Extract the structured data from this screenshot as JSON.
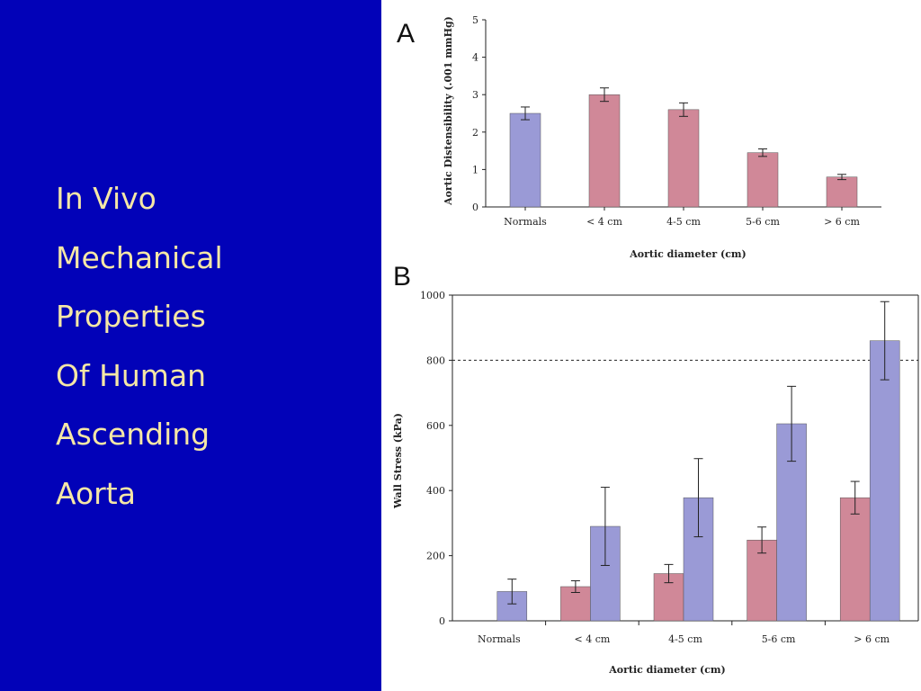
{
  "slide": {
    "title_lines": [
      "In Vivo",
      "Mechanical",
      "Properties",
      "Of Human",
      "Ascending",
      "Aorta"
    ]
  },
  "colors": {
    "background": "#0202b8",
    "title_text": "#f5e7a6",
    "normal_bar": "#9a9ad6",
    "aneurysm_bar": "#d08898"
  },
  "chart_data": [
    {
      "panel": "A",
      "type": "bar",
      "xlabel": "Aortic diameter (cm)",
      "ylabel": "Aortic Distensibility (.001 mmHg)",
      "ylim": [
        0,
        5
      ],
      "yticks": [
        0,
        1,
        2,
        3,
        4,
        5
      ],
      "categories": [
        "Normals",
        "< 4 cm",
        "4-5 cm",
        "5-6 cm",
        "> 6 cm"
      ],
      "values": [
        2.5,
        3.0,
        2.6,
        1.45,
        0.8
      ],
      "errors": [
        0.17,
        0.18,
        0.18,
        0.1,
        0.07
      ],
      "bar_colors": [
        "#9a9ad6",
        "#d08898",
        "#d08898",
        "#d08898",
        "#d08898"
      ]
    },
    {
      "panel": "B",
      "type": "bar",
      "xlabel": "Aortic diameter (cm)",
      "ylabel": "Wall Stress (kPa)",
      "ylim": [
        0,
        1000
      ],
      "yticks": [
        0,
        200,
        400,
        600,
        800,
        1000
      ],
      "reference_line": 800,
      "categories": [
        "Normals",
        "< 4 cm",
        "4-5 cm",
        "5-6 cm",
        "> 6 cm"
      ],
      "series": [
        {
          "values": [
            null,
            105,
            145,
            248,
            378
          ],
          "errors": [
            null,
            18,
            28,
            40,
            50
          ],
          "color": "#d08898"
        },
        {
          "values": [
            90,
            290,
            378,
            605,
            860
          ],
          "errors": [
            38,
            120,
            120,
            115,
            120
          ],
          "color": "#9a9ad6"
        }
      ]
    }
  ]
}
